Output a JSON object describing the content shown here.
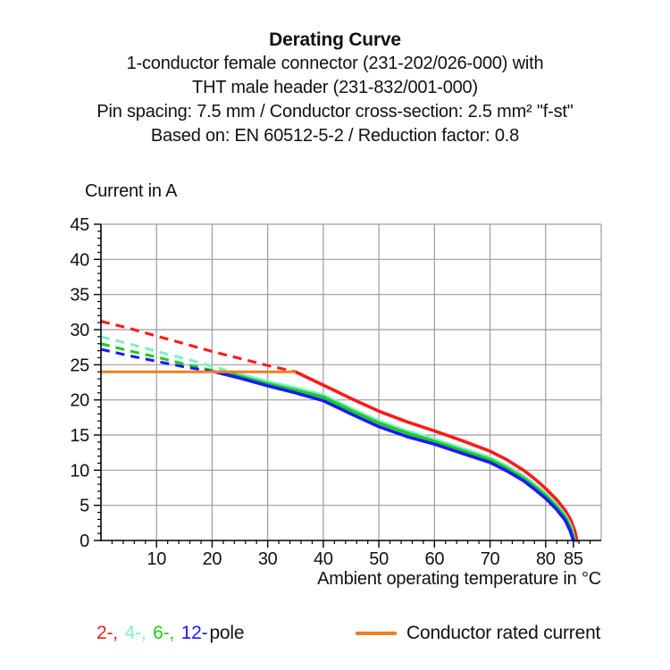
{
  "title": {
    "line1": "Derating Curve",
    "line2": "1-conductor female connector (231-202/026-000) with",
    "line3": "THT male header (231-832/001-000)",
    "line4": "Pin spacing: 7.5 mm / Conductor cross-section: 2.5 mm² \"f-st\"",
    "line5": "Based on: EN 60512-5-2 / Reduction factor: 0.8"
  },
  "chart_data": {
    "type": "line",
    "title": "Derating Curve",
    "ylabel": "Current in A",
    "xlabel": "Ambient operating temperature in °C",
    "xlim": [
      0,
      90
    ],
    "ylim": [
      0,
      45
    ],
    "x_major_ticks": [
      10,
      20,
      30,
      40,
      50,
      60,
      70,
      80,
      85
    ],
    "y_major_ticks": [
      0,
      5,
      10,
      15,
      20,
      25,
      30,
      35,
      40,
      45
    ],
    "x_gridlines": [
      10,
      20,
      30,
      40,
      50,
      60,
      70,
      80
    ],
    "y_gridlines": [
      5,
      10,
      15,
      20,
      25,
      30,
      35,
      40,
      45
    ],
    "x_minor_step": 2,
    "y_minor_step": 1,
    "grid": true,
    "legend_position": "bottom",
    "colors": {
      "grid": "#9c9c9c",
      "axis": "#000000"
    },
    "series": [
      {
        "name": "2-pole",
        "color": "#FF1A1A",
        "dashed": [
          [
            0,
            31.2
          ],
          [
            5,
            30.2
          ],
          [
            10,
            29.1
          ],
          [
            15,
            28.0
          ],
          [
            20,
            26.9
          ],
          [
            25,
            25.9
          ],
          [
            30,
            24.9
          ],
          [
            35,
            24.0
          ]
        ],
        "solid": [
          [
            35,
            24.0
          ],
          [
            40,
            22.1
          ],
          [
            45,
            20.2
          ],
          [
            50,
            18.4
          ],
          [
            55,
            16.9
          ],
          [
            60,
            15.6
          ],
          [
            65,
            14.2
          ],
          [
            70,
            12.7
          ],
          [
            73,
            11.5
          ],
          [
            76,
            10.0
          ],
          [
            78,
            8.8
          ],
          [
            80,
            7.4
          ],
          [
            82,
            5.8
          ],
          [
            83.5,
            4.3
          ],
          [
            84.6,
            2.8
          ],
          [
            85.3,
            1.2
          ],
          [
            85.6,
            0
          ]
        ]
      },
      {
        "name": "4-pole",
        "color": "#7FEFC9",
        "dashed": [
          [
            0,
            29.0
          ],
          [
            5,
            28.0
          ],
          [
            10,
            26.9
          ],
          [
            15,
            25.9
          ],
          [
            20,
            24.8
          ],
          [
            23.5,
            24.0
          ]
        ],
        "solid": [
          [
            23.5,
            24.0
          ],
          [
            30,
            22.6
          ],
          [
            35,
            21.7
          ],
          [
            40,
            20.7
          ],
          [
            45,
            18.8
          ],
          [
            50,
            17.0
          ],
          [
            55,
            15.6
          ],
          [
            60,
            14.4
          ],
          [
            65,
            13.1
          ],
          [
            70,
            11.8
          ],
          [
            73,
            10.6
          ],
          [
            76,
            9.2
          ],
          [
            78,
            8.0
          ],
          [
            80,
            6.7
          ],
          [
            82,
            5.1
          ],
          [
            83.5,
            3.6
          ],
          [
            84.6,
            2.0
          ],
          [
            85.2,
            0
          ]
        ]
      },
      {
        "name": "6-pole",
        "color": "#1ECC1E",
        "dashed": [
          [
            0,
            28.0
          ],
          [
            5,
            27.0
          ],
          [
            10,
            26.1
          ],
          [
            15,
            25.1
          ],
          [
            20,
            24.2
          ],
          [
            22,
            24.0
          ]
        ],
        "solid": [
          [
            22,
            24.0
          ],
          [
            30,
            22.3
          ],
          [
            35,
            21.4
          ],
          [
            40,
            20.4
          ],
          [
            45,
            18.5
          ],
          [
            50,
            16.7
          ],
          [
            55,
            15.3
          ],
          [
            60,
            14.1
          ],
          [
            65,
            12.8
          ],
          [
            70,
            11.5
          ],
          [
            73,
            10.3
          ],
          [
            76,
            8.9
          ],
          [
            78,
            7.7
          ],
          [
            80,
            6.4
          ],
          [
            82,
            4.8
          ],
          [
            83.5,
            3.3
          ],
          [
            84.5,
            1.8
          ],
          [
            85.1,
            0
          ]
        ]
      },
      {
        "name": "12-pole",
        "color": "#1A1AFF",
        "dashed": [
          [
            0,
            27.2
          ],
          [
            5,
            26.3
          ],
          [
            10,
            25.5
          ],
          [
            15,
            24.7
          ],
          [
            20,
            24.05
          ],
          [
            20.5,
            24.0
          ]
        ],
        "solid": [
          [
            20.5,
            24.0
          ],
          [
            25,
            23.1
          ],
          [
            30,
            22.0
          ],
          [
            35,
            21.0
          ],
          [
            40,
            19.9
          ],
          [
            45,
            18.0
          ],
          [
            50,
            16.2
          ],
          [
            55,
            14.8
          ],
          [
            60,
            13.7
          ],
          [
            65,
            12.4
          ],
          [
            70,
            11.1
          ],
          [
            73,
            9.9
          ],
          [
            76,
            8.5
          ],
          [
            78,
            7.3
          ],
          [
            80,
            6.0
          ],
          [
            82,
            4.4
          ],
          [
            83.5,
            2.9
          ],
          [
            84.4,
            1.4
          ],
          [
            85,
            0
          ]
        ]
      }
    ],
    "rated_current_line": {
      "label": "Conductor rated current",
      "color": "#F57E20",
      "y": 24,
      "x_start": 0,
      "x_end": 35
    }
  },
  "legend": {
    "pole_items": [
      {
        "label": "2-,",
        "color": "#FF1A1A"
      },
      {
        "label": "4-,",
        "color": "#7FEFC9"
      },
      {
        "label": "6-,",
        "color": "#1ECC1E"
      },
      {
        "label": "12-",
        "color": "#1A1AFF"
      }
    ],
    "pole_suffix": "pole",
    "rated_label": "Conductor rated current"
  }
}
